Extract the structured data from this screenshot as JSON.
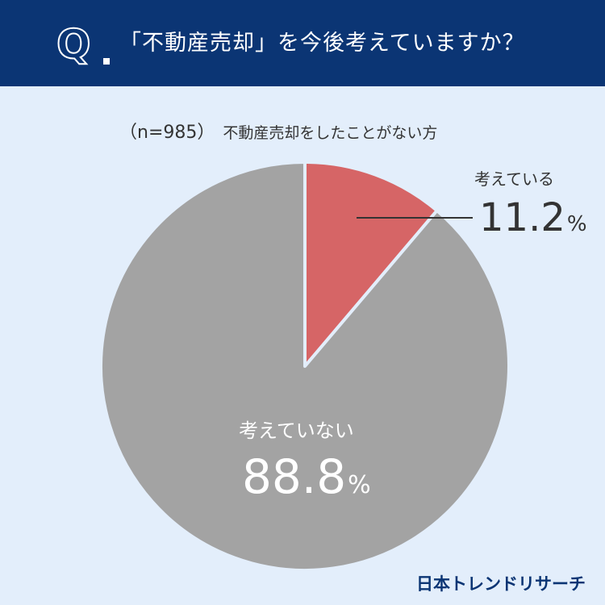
{
  "header": {
    "q_letter": "Q",
    "question": "「不動産売却」を今後考えていますか？"
  },
  "sample": {
    "n_label": "（n=985）",
    "target": "不動産売却をしたことがない方"
  },
  "chart_data": {
    "type": "pie",
    "title": "「不動産売却」を今後考えていますか？",
    "subtitle": "（n=985）不動産売却をしたことがない方",
    "categories": [
      "考えている",
      "考えていない"
    ],
    "values": [
      11.2,
      88.8
    ],
    "unit": "%",
    "colors": [
      "#d66566",
      "#a3a3a3"
    ],
    "labels": [
      {
        "name": "考えている",
        "value": "11.2",
        "unit": "%"
      },
      {
        "name": "考えていない",
        "value": "88.8",
        "unit": "%"
      }
    ]
  },
  "brand": {
    "logo_text": "日本トレンドリサーチ"
  }
}
